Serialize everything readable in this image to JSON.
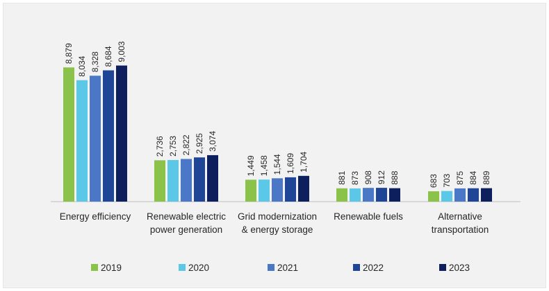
{
  "chart_data": {
    "type": "bar",
    "categories": [
      [
        "Energy efficiency"
      ],
      [
        "Renewable electric",
        "power generation"
      ],
      [
        "Grid modernization",
        "& energy storage"
      ],
      [
        "Renewable fuels"
      ],
      [
        "Alternative",
        "transportation"
      ]
    ],
    "series": [
      {
        "name": "2019",
        "color": "#8bc34a",
        "values": [
          8879,
          2736,
          1449,
          881,
          683
        ],
        "labels": [
          "8,879",
          "2,736",
          "1,449",
          "881",
          "683"
        ]
      },
      {
        "name": "2020",
        "color": "#5bc8e8",
        "values": [
          8034,
          2753,
          1458,
          873,
          703
        ],
        "labels": [
          "8,034",
          "2,753",
          "1,458",
          "873",
          "703"
        ]
      },
      {
        "name": "2021",
        "color": "#4a78c6",
        "values": [
          8328,
          2822,
          1544,
          908,
          875
        ],
        "labels": [
          "8,328",
          "2,822",
          "1,544",
          "908",
          "875"
        ]
      },
      {
        "name": "2022",
        "color": "#1f4596",
        "values": [
          8684,
          2925,
          1609,
          912,
          884
        ],
        "labels": [
          "8,684",
          "2,925",
          "1,609",
          "912",
          "884"
        ]
      },
      {
        "name": "2023",
        "color": "#0d1f5c",
        "values": [
          9003,
          3074,
          1704,
          888,
          889
        ],
        "labels": [
          "9,003",
          "3,074",
          "1,704",
          "888",
          "889"
        ]
      }
    ],
    "ylim": [
      0,
      11000
    ],
    "legend_position": "bottom",
    "grid": false
  }
}
